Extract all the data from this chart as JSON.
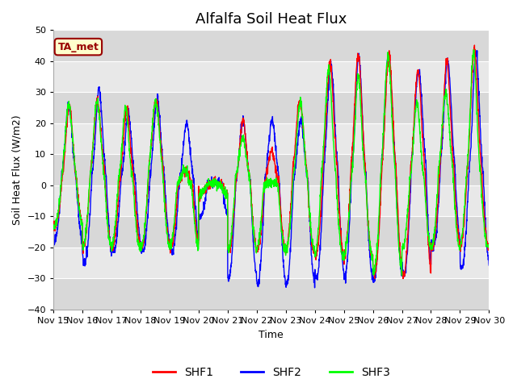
{
  "title": "Alfalfa Soil Heat Flux",
  "xlabel": "Time",
  "ylabel": "Soil Heat Flux (W/m2)",
  "ylim": [
    -40,
    50
  ],
  "xlim": [
    0,
    15
  ],
  "yticks": [
    -40,
    -30,
    -20,
    -10,
    0,
    10,
    20,
    30,
    40,
    50
  ],
  "xtick_labels": [
    "Nov 15",
    "Nov 16",
    "Nov 17",
    "Nov 18",
    "Nov 19",
    "Nov 20",
    "Nov 21",
    "Nov 22",
    "Nov 23",
    "Nov 24",
    "Nov 25",
    "Nov 26",
    "Nov 27",
    "Nov 28",
    "Nov 29",
    "Nov 30"
  ],
  "xtick_positions": [
    0,
    1,
    2,
    3,
    4,
    5,
    6,
    7,
    8,
    9,
    10,
    11,
    12,
    13,
    14,
    15
  ],
  "line_colors": [
    "red",
    "blue",
    "lime"
  ],
  "line_labels": [
    "SHF1",
    "SHF2",
    "SHF3"
  ],
  "line_width": 1.0,
  "plot_bg": "#e8e8e8",
  "band_colors": [
    "#d8d8d8",
    "#e8e8e8"
  ],
  "ta_met_label": "TA_met",
  "ta_met_color": "#990000",
  "ta_met_bg": "#ffffcc",
  "title_fontsize": 13,
  "axis_fontsize": 9,
  "tick_fontsize": 8,
  "legend_fontsize": 10
}
